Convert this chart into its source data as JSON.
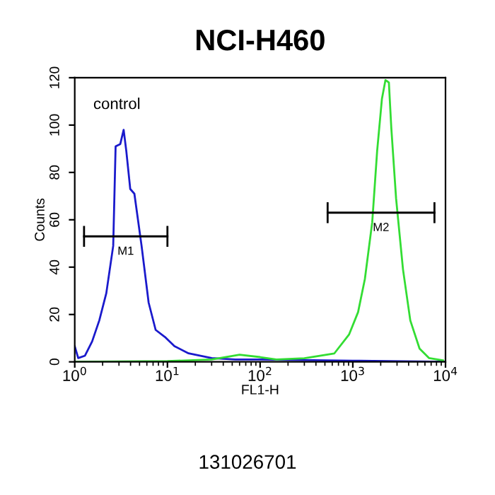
{
  "chart_data": {
    "type": "line",
    "title": "NCI-H460",
    "xlabel": "FL1-H",
    "ylabel": "Counts",
    "log": "x",
    "xlim": [
      1,
      10000
    ],
    "xticks": [
      {
        "value": 1,
        "label": "10$^{0}$"
      },
      {
        "value": 10,
        "label": "10$^{1}$"
      },
      {
        "value": 100,
        "label": "10$^{2}$"
      },
      {
        "value": 1000,
        "label": "10$^{3}$"
      },
      {
        "value": 10000,
        "label": "10$^{4}$"
      }
    ],
    "ylim": [
      0,
      120
    ],
    "yticks": [
      0,
      20,
      40,
      60,
      80,
      100,
      120
    ],
    "grid": false,
    "legend": false,
    "marker": "none",
    "line_style": "solid",
    "series": [
      {
        "color": "#1a1acc",
        "x": [
          1.0,
          1.09,
          1.29,
          1.54,
          1.84,
          2.19,
          2.6,
          2.76,
          3.1,
          3.37,
          3.6,
          3.97,
          4.4,
          5.26,
          6.27,
          7.46,
          9.4,
          11.9,
          16.9,
          30,
          54,
          100,
          1000,
          10000
        ],
        "values": [
          6.6,
          1.6,
          2.6,
          8.6,
          17.5,
          29,
          49,
          91,
          92,
          98,
          89,
          73,
          71,
          49,
          25,
          13.5,
          10.5,
          6.6,
          3.6,
          1.6,
          1,
          1,
          0.5,
          0
        ]
      },
      {
        "color": "#33dd33",
        "x": [
          1,
          10,
          30,
          60,
          100,
          150,
          300,
          630,
          910,
          1140,
          1350,
          1620,
          1830,
          2060,
          2250,
          2450,
          2600,
          2930,
          3480,
          4170,
          5250,
          6630,
          9400
        ],
        "values": [
          0,
          0.3,
          1,
          3,
          2,
          1,
          1.5,
          3.5,
          11.5,
          21,
          35,
          59,
          89,
          111,
          119,
          118,
          99,
          69,
          39,
          17.5,
          5.6,
          1.6,
          0.6
        ]
      },
      {
        "type": "line",
        "name": "M1",
        "color": "#000000",
        "x": [
          1.26,
          10
        ],
        "values": [
          53,
          53
        ]
      },
      {
        "type": "line",
        "name": "M2",
        "color": "#000000",
        "x": [
          535,
          7600
        ],
        "values": [
          63,
          63
        ]
      }
    ],
    "annotations": [
      "control",
      "131026701"
    ]
  }
}
